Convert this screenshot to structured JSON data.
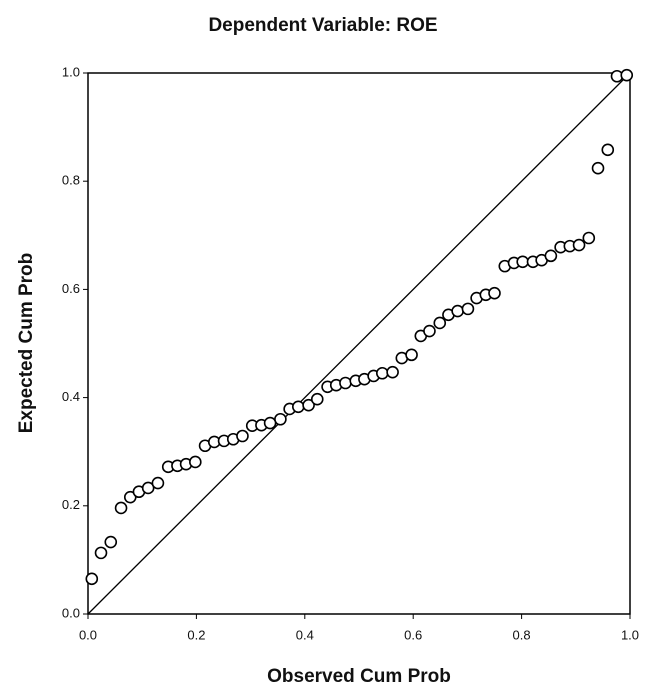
{
  "chart_data": {
    "type": "scatter",
    "title": "Dependent Variable: ROE",
    "xlabel": "Observed Cum Prob",
    "ylabel": "Expected Cum Prob",
    "color": "#000000",
    "xlim": [
      0,
      1
    ],
    "ylim": [
      0,
      1
    ],
    "xticks": [
      {
        "value": 0,
        "label": "0.0"
      },
      {
        "value": 0.2,
        "label": "0.2"
      },
      {
        "value": 0.4,
        "label": "0.4"
      },
      {
        "value": 0.6,
        "label": "0.6"
      },
      {
        "value": 0.8,
        "label": "0.8"
      },
      {
        "value": 1,
        "label": "1.0"
      }
    ],
    "yticks": [
      {
        "value": 0,
        "label": "0.0"
      },
      {
        "value": 0.2,
        "label": "0.2"
      },
      {
        "value": 0.4,
        "label": "0.4"
      },
      {
        "value": 0.6,
        "label": "0.6"
      },
      {
        "value": 0.8,
        "label": "0.8"
      },
      {
        "value": 1,
        "label": "1.0"
      }
    ],
    "x": [
      0.007,
      0.024,
      0.042,
      0.061,
      0.078,
      0.094,
      0.111,
      0.129,
      0.148,
      0.165,
      0.181,
      0.198,
      0.216,
      0.233,
      0.251,
      0.268,
      0.285,
      0.303,
      0.32,
      0.336,
      0.355,
      0.372,
      0.388,
      0.407,
      0.423,
      0.442,
      0.458,
      0.475,
      0.494,
      0.51,
      0.527,
      0.543,
      0.562,
      0.579,
      0.597,
      0.614,
      0.63,
      0.649,
      0.665,
      0.682,
      0.701,
      0.717,
      0.734,
      0.75,
      0.769,
      0.786,
      0.802,
      0.821,
      0.837,
      0.854,
      0.872,
      0.889,
      0.906,
      0.924,
      0.941,
      0.959,
      0.976,
      0.994
    ],
    "values": [
      0.065,
      0.113,
      0.133,
      0.196,
      0.216,
      0.226,
      0.233,
      0.242,
      0.272,
      0.274,
      0.277,
      0.281,
      0.311,
      0.318,
      0.32,
      0.323,
      0.329,
      0.348,
      0.349,
      0.353,
      0.36,
      0.379,
      0.383,
      0.386,
      0.397,
      0.42,
      0.423,
      0.427,
      0.431,
      0.434,
      0.44,
      0.445,
      0.447,
      0.473,
      0.479,
      0.514,
      0.523,
      0.538,
      0.553,
      0.56,
      0.564,
      0.584,
      0.59,
      0.593,
      0.643,
      0.649,
      0.651,
      0.651,
      0.654,
      0.662,
      0.678,
      0.68,
      0.682,
      0.695,
      0.824,
      0.858,
      0.994,
      0.996
    ]
  }
}
